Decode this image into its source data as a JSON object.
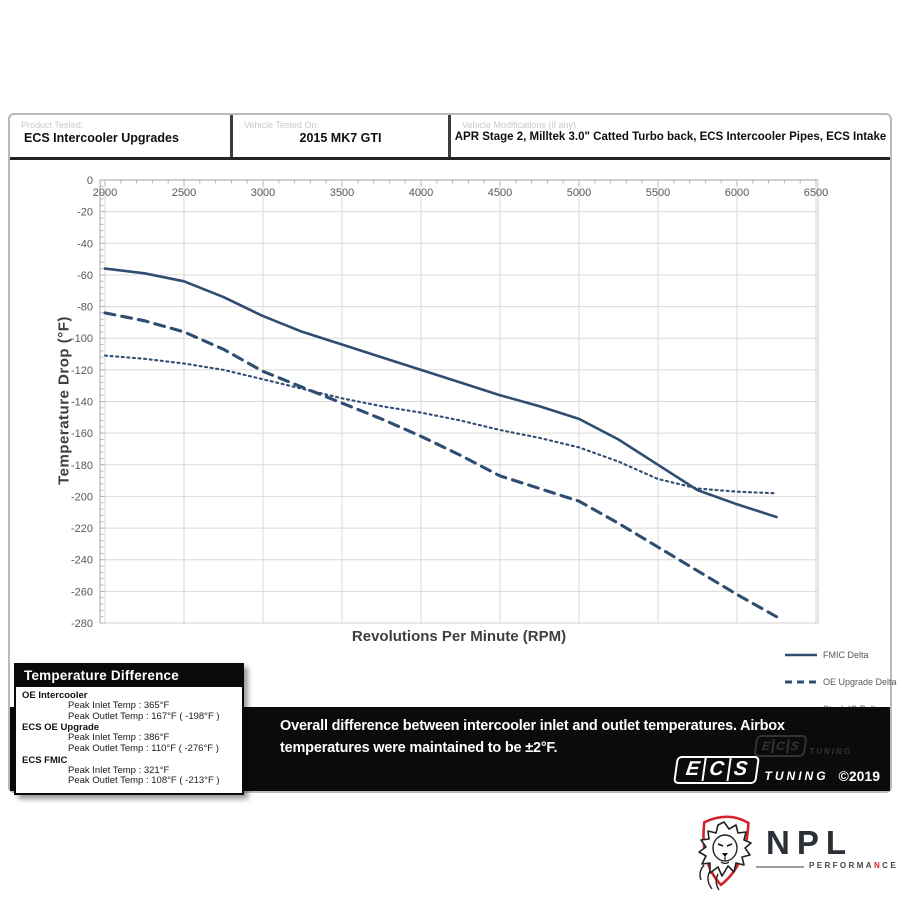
{
  "header": {
    "cells": [
      {
        "label": "Product Tested:",
        "value": "ECS Intercooler Upgrades"
      },
      {
        "label": "Vehicle Tested On:",
        "value": "2015 MK7 GTI"
      },
      {
        "label": "Vehicle Modifications (if any)",
        "value": "APR Stage 2,  Milltek 3.0\" Catted Turbo back, ECS Intercooler Pipes, ECS Intake"
      }
    ]
  },
  "chart_data": {
    "type": "line",
    "title": "",
    "xlabel": "Revolutions Per Minute (RPM)",
    "ylabel": "Temperature  Drop (°F)",
    "xlim": [
      2000,
      6500
    ],
    "ylim": [
      -280,
      0
    ],
    "x_ticks": [
      2000,
      2500,
      3000,
      3500,
      4000,
      4500,
      5000,
      5500,
      6000,
      6500
    ],
    "y_ticks": [
      0,
      -20,
      -40,
      -60,
      -80,
      -100,
      -120,
      -140,
      -160,
      -180,
      -200,
      -220,
      -240,
      -260,
      -280
    ],
    "grid": true,
    "legend_position": "bottom-right",
    "line_color": "#2e4d70",
    "grid_color": "#dadada",
    "axis_color": "#b5b5b5",
    "tick_label_color": "#595959",
    "x": [
      2000,
      2250,
      2500,
      2750,
      3000,
      3250,
      3500,
      3750,
      4000,
      4250,
      4500,
      4750,
      5000,
      5250,
      5500,
      5750,
      6000,
      6250
    ],
    "series": [
      {
        "name": "FMIC Delta",
        "style": "solid",
        "values": [
          -56,
          -59,
          -64,
          -74,
          -86,
          -96,
          -104,
          -112,
          -120,
          -128,
          -136,
          -143,
          -151,
          -164,
          -180,
          -196,
          -205,
          -213
        ]
      },
      {
        "name": "OE Upgrade Delta",
        "style": "dashed",
        "values": [
          -84,
          -89,
          -96,
          -107,
          -121,
          -131,
          -141,
          -151,
          -162,
          -174,
          -187,
          -195,
          -203,
          -217,
          -232,
          -247,
          -262,
          -276
        ]
      },
      {
        "name": "Stock IC Delta",
        "style": "dotted",
        "values": [
          -111,
          -113,
          -116,
          -120,
          -126,
          -132,
          -138,
          -143,
          -147,
          -152,
          -158,
          -163,
          -169,
          -178,
          -189,
          -195,
          -197,
          -198
        ]
      }
    ]
  },
  "temp_table": {
    "title": "Temperature Difference",
    "rows": [
      {
        "name": "OE Intercooler",
        "lines": [
          "Peak Inlet Temp : 365°F",
          "Peak Outlet Temp : 167°F ( -198°F )"
        ]
      },
      {
        "name": "ECS OE Upgrade",
        "lines": [
          "Peak Inlet Temp : 386°F",
          "Peak Outlet Temp : 110°F ( -276°F )"
        ]
      },
      {
        "name": "ECS FMIC",
        "lines": [
          "Peak Inlet Temp : 321°F",
          "Peak Outlet Temp : 108°F ( -213°F )"
        ]
      }
    ]
  },
  "footer": {
    "note": "Overall difference between intercooler inlet and outlet temperatures. Airbox temperatures were maintained to be ±2°F.",
    "ecs": {
      "letters": [
        "E",
        "C",
        "S"
      ],
      "tuning": "TUNING",
      "copyright": "©2019"
    }
  },
  "npl": {
    "name": "NPL",
    "sub_left": "PERFORMA",
    "sub_accent": "N",
    "sub_right": "CE"
  }
}
